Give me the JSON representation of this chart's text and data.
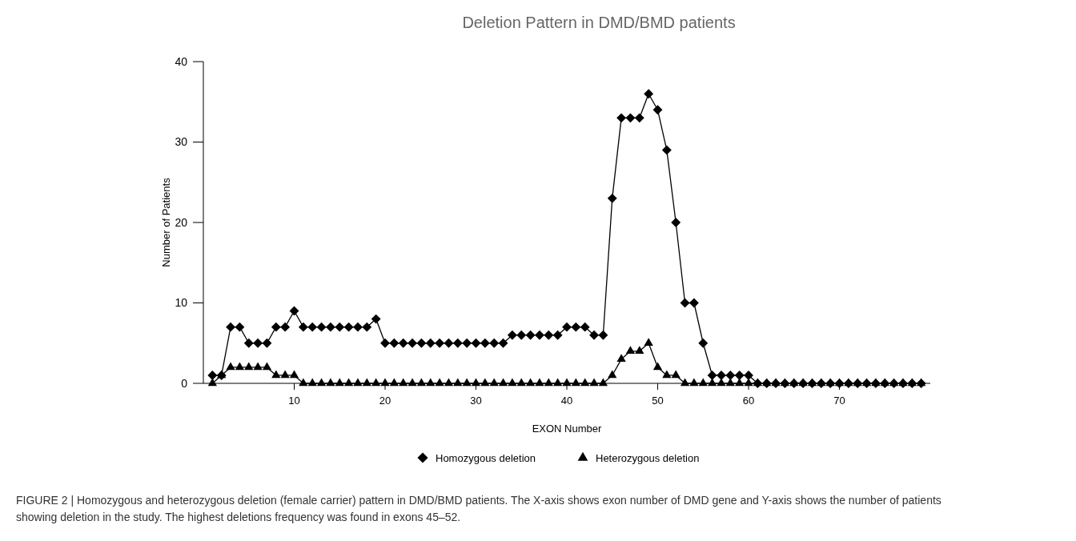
{
  "chart_data": {
    "type": "line",
    "title": "Deletion Pattern in DMD/BMD patients",
    "xlabel": "EXON Number",
    "ylabel": "Number of Patients",
    "x": [
      1,
      2,
      3,
      4,
      5,
      6,
      7,
      8,
      9,
      10,
      11,
      12,
      13,
      14,
      15,
      16,
      17,
      18,
      19,
      20,
      21,
      22,
      23,
      24,
      25,
      26,
      27,
      28,
      29,
      30,
      31,
      32,
      33,
      34,
      35,
      36,
      37,
      38,
      39,
      40,
      41,
      42,
      43,
      44,
      45,
      46,
      47,
      48,
      49,
      50,
      51,
      52,
      53,
      54,
      55,
      56,
      57,
      58,
      59,
      60,
      61,
      62,
      63,
      64,
      65,
      66,
      67,
      68,
      69,
      70,
      71,
      72,
      73,
      74,
      75,
      76,
      77,
      78,
      79
    ],
    "series": [
      {
        "name": "Homozygous deletion",
        "color": "#000000",
        "marker": "diamond",
        "values": [
          1,
          1,
          7,
          7,
          5,
          5,
          5,
          7,
          7,
          9,
          7,
          7,
          7,
          7,
          7,
          7,
          7,
          7,
          8,
          5,
          5,
          5,
          5,
          5,
          5,
          5,
          5,
          5,
          5,
          5,
          5,
          5,
          5,
          6,
          6,
          6,
          6,
          6,
          6,
          7,
          7,
          7,
          6,
          6,
          23,
          33,
          33,
          33,
          36,
          34,
          29,
          20,
          10,
          10,
          5,
          1,
          1,
          1,
          1,
          1,
          0,
          0,
          0,
          0,
          0,
          0,
          0,
          0,
          0,
          0,
          0,
          0,
          0,
          0,
          0,
          0,
          0,
          0,
          0
        ]
      },
      {
        "name": "Heterozygous deletion",
        "color": "#000000",
        "marker": "triangle",
        "values": [
          0,
          1,
          2,
          2,
          2,
          2,
          2,
          1,
          1,
          1,
          0,
          0,
          0,
          0,
          0,
          0,
          0,
          0,
          0,
          0,
          0,
          0,
          0,
          0,
          0,
          0,
          0,
          0,
          0,
          0,
          0,
          0,
          0,
          0,
          0,
          0,
          0,
          0,
          0,
          0,
          0,
          0,
          0,
          0,
          1,
          3,
          4,
          4,
          5,
          2,
          1,
          1,
          0,
          0,
          0,
          0,
          0,
          0,
          0,
          0,
          0,
          0,
          0,
          0,
          0,
          0,
          0,
          0,
          0,
          0,
          0,
          0,
          0,
          0,
          0,
          0,
          0,
          0,
          0
        ]
      }
    ],
    "xlim": [
      0,
      80
    ],
    "xticks": [
      10,
      20,
      30,
      40,
      50,
      60,
      70
    ],
    "ylim": [
      0,
      40
    ],
    "yticks": [
      0,
      10,
      20,
      30,
      40
    ],
    "grid": false,
    "legend": "bottom",
    "annotations": [
      "FIGURE 2 | Homozygous and heterozygous deletion (female carrier) pattern in DMD/BMD patients. The X-axis shows exon number of DMD gene and Y-axis shows the number of patients showing deletion in the study. The highest deletions frequency was found in exons 45–52."
    ]
  }
}
